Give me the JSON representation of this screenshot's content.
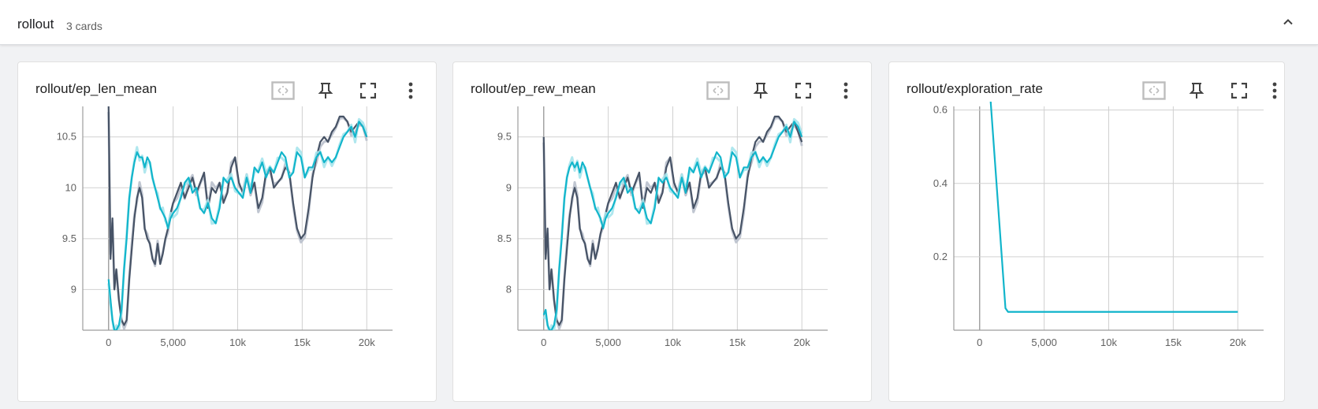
{
  "group": {
    "title": "rollout",
    "count_label": "3 cards"
  },
  "colors": {
    "run_a": "#475366",
    "run_a_raw": "#b9c0cc",
    "run_b": "#12b5cb",
    "run_b_raw": "#a6e4ec",
    "grid": "#d0d0d0",
    "axis": "#9e9e9e"
  },
  "icons": [
    "chevron-up-icon",
    "fit-domain-icon",
    "pin-icon",
    "fullscreen-icon",
    "more-vert-icon"
  ],
  "chart_data": [
    {
      "type": "line",
      "title": "rollout/ep_len_mean",
      "xlim": [
        -2000,
        22000
      ],
      "ylim": [
        8.6,
        10.8
      ],
      "x_ticks": [
        0,
        5000,
        10000,
        15000,
        20000
      ],
      "x_tick_labels": [
        "0",
        "5,000",
        "10k",
        "15k",
        "20k"
      ],
      "y_ticks": [
        9,
        9.5,
        10,
        10.5
      ],
      "y_tick_labels": [
        "9",
        "9.5",
        "10",
        "10.5"
      ],
      "grid": true,
      "series": [
        {
          "color_key": "run_a",
          "x": [
            0,
            150,
            300,
            450,
            600,
            800,
            1000,
            1200,
            1400,
            1600,
            1800,
            2000,
            2200,
            2400,
            2600,
            2800,
            3000,
            3200,
            3400,
            3600,
            3800,
            4000,
            4200,
            4400,
            4600,
            4800,
            5000,
            5300,
            5600,
            5900,
            6200,
            6500,
            6800,
            7100,
            7400,
            7700,
            8000,
            8300,
            8600,
            8900,
            9200,
            9500,
            9800,
            10100,
            10400,
            10700,
            11000,
            11300,
            11600,
            11900,
            12200,
            12500,
            12800,
            13100,
            13400,
            13700,
            14000,
            14300,
            14600,
            14900,
            15200,
            15500,
            15800,
            16100,
            16400,
            16700,
            17000,
            17300,
            17600,
            17900,
            18200,
            18500,
            18800,
            19100,
            19400,
            19700,
            20000
          ],
          "y": [
            10.8,
            9.3,
            9.7,
            9.0,
            9.2,
            8.9,
            8.7,
            8.65,
            8.7,
            9.1,
            9.4,
            9.7,
            9.9,
            10.0,
            9.9,
            9.6,
            9.5,
            9.45,
            9.3,
            9.25,
            9.45,
            9.25,
            9.35,
            9.5,
            9.6,
            9.75,
            9.85,
            9.95,
            10.05,
            9.9,
            10.0,
            10.1,
            9.95,
            10.05,
            10.15,
            9.8,
            10.0,
            9.95,
            10.05,
            9.85,
            9.95,
            10.2,
            10.3,
            10.05,
            9.95,
            10.1,
            9.95,
            10.05,
            9.8,
            9.9,
            10.15,
            10.2,
            10.0,
            10.05,
            10.1,
            10.2,
            10.15,
            9.85,
            9.6,
            9.5,
            9.55,
            9.8,
            10.1,
            10.3,
            10.45,
            10.5,
            10.45,
            10.55,
            10.6,
            10.7,
            10.7,
            10.65,
            10.55,
            10.6,
            10.65,
            10.6,
            10.5
          ]
        },
        {
          "color_key": "run_b",
          "x": [
            0,
            150,
            300,
            450,
            600,
            800,
            1000,
            1200,
            1400,
            1600,
            1800,
            2000,
            2200,
            2400,
            2600,
            2800,
            3000,
            3200,
            3400,
            3600,
            3800,
            4000,
            4200,
            4400,
            4600,
            4800,
            5000,
            5300,
            5600,
            5900,
            6200,
            6500,
            6800,
            7100,
            7400,
            7700,
            8000,
            8300,
            8600,
            8900,
            9200,
            9500,
            9800,
            10100,
            10400,
            10700,
            11000,
            11300,
            11600,
            11900,
            12200,
            12500,
            12800,
            13100,
            13400,
            13700,
            14000,
            14300,
            14600,
            14900,
            15200,
            15500,
            15800,
            16100,
            16400,
            16700,
            17000,
            17300,
            17600,
            17900,
            18200,
            18500,
            18800,
            19100,
            19400,
            19700,
            20000
          ],
          "y": [
            9.1,
            8.9,
            8.7,
            8.6,
            8.6,
            8.65,
            8.8,
            9.2,
            9.5,
            9.9,
            10.1,
            10.25,
            10.35,
            10.3,
            10.3,
            10.2,
            10.3,
            10.25,
            10.1,
            10.0,
            9.9,
            9.8,
            9.75,
            9.7,
            9.6,
            9.7,
            9.75,
            9.8,
            9.9,
            10.05,
            10.1,
            9.95,
            10.0,
            9.8,
            9.75,
            9.85,
            9.7,
            9.65,
            9.8,
            10.1,
            10.05,
            10.1,
            10.0,
            9.95,
            9.9,
            10.1,
            9.95,
            10.2,
            10.15,
            10.25,
            10.1,
            10.2,
            10.15,
            10.25,
            10.35,
            10.3,
            10.1,
            10.15,
            10.35,
            10.3,
            10.1,
            10.2,
            10.2,
            10.3,
            10.35,
            10.25,
            10.3,
            10.25,
            10.3,
            10.4,
            10.5,
            10.55,
            10.6,
            10.5,
            10.65,
            10.6,
            10.5
          ]
        }
      ]
    },
    {
      "type": "line",
      "title": "rollout/ep_rew_mean",
      "xlim": [
        -2000,
        22000
      ],
      "ylim": [
        7.6,
        9.8
      ],
      "x_ticks": [
        0,
        5000,
        10000,
        15000,
        20000
      ],
      "x_tick_labels": [
        "0",
        "5,000",
        "10k",
        "15k",
        "20k"
      ],
      "y_ticks": [
        8,
        8.5,
        9,
        9.5
      ],
      "y_tick_labels": [
        "8",
        "8.5",
        "9",
        "9.5"
      ],
      "grid": true,
      "series": [
        {
          "color_key": "run_a",
          "x": [
            0,
            150,
            300,
            450,
            600,
            800,
            1000,
            1200,
            1400,
            1600,
            1800,
            2000,
            2200,
            2400,
            2600,
            2800,
            3000,
            3200,
            3400,
            3600,
            3800,
            4000,
            4200,
            4400,
            4600,
            4800,
            5000,
            5300,
            5600,
            5900,
            6200,
            6500,
            6800,
            7100,
            7400,
            7700,
            8000,
            8300,
            8600,
            8900,
            9200,
            9500,
            9800,
            10100,
            10400,
            10700,
            11000,
            11300,
            11600,
            11900,
            12200,
            12500,
            12800,
            13100,
            13400,
            13700,
            14000,
            14300,
            14600,
            14900,
            15200,
            15500,
            15800,
            16100,
            16400,
            16700,
            17000,
            17300,
            17600,
            17900,
            18200,
            18500,
            18800,
            19100,
            19400,
            19700,
            20000
          ],
          "y": [
            9.5,
            8.3,
            8.6,
            8.0,
            8.2,
            7.9,
            7.7,
            7.65,
            7.7,
            8.1,
            8.4,
            8.7,
            8.9,
            9.0,
            8.9,
            8.6,
            8.5,
            8.45,
            8.3,
            8.25,
            8.45,
            8.3,
            8.4,
            8.55,
            8.65,
            8.75,
            8.85,
            8.95,
            9.05,
            8.9,
            9.0,
            9.1,
            8.95,
            9.05,
            9.15,
            8.8,
            9.0,
            8.95,
            9.05,
            8.85,
            8.95,
            9.2,
            9.3,
            9.05,
            8.95,
            9.1,
            8.95,
            9.05,
            8.8,
            8.9,
            9.15,
            9.2,
            9.0,
            9.05,
            9.1,
            9.2,
            9.15,
            8.85,
            8.6,
            8.5,
            8.55,
            8.8,
            9.1,
            9.3,
            9.45,
            9.5,
            9.45,
            9.55,
            9.6,
            9.7,
            9.7,
            9.65,
            9.55,
            9.6,
            9.65,
            9.55,
            9.45
          ]
        },
        {
          "color_key": "run_b",
          "x": [
            0,
            150,
            300,
            450,
            600,
            800,
            1000,
            1200,
            1400,
            1600,
            1800,
            2000,
            2200,
            2400,
            2600,
            2800,
            3000,
            3200,
            3400,
            3600,
            3800,
            4000,
            4200,
            4400,
            4600,
            4800,
            5000,
            5300,
            5600,
            5900,
            6200,
            6500,
            6800,
            7100,
            7400,
            7700,
            8000,
            8300,
            8600,
            8900,
            9200,
            9500,
            9800,
            10100,
            10400,
            10700,
            11000,
            11300,
            11600,
            11900,
            12200,
            12500,
            12800,
            13100,
            13400,
            13700,
            14000,
            14300,
            14600,
            14900,
            15200,
            15500,
            15800,
            16100,
            16400,
            16700,
            17000,
            17300,
            17600,
            17900,
            18200,
            18500,
            18800,
            19100,
            19400,
            19700,
            20000
          ],
          "y": [
            7.75,
            7.8,
            7.65,
            7.6,
            7.6,
            7.65,
            7.8,
            8.2,
            8.5,
            8.9,
            9.1,
            9.2,
            9.25,
            9.2,
            9.25,
            9.15,
            9.25,
            9.2,
            9.1,
            9.0,
            8.9,
            8.8,
            8.75,
            8.7,
            8.6,
            8.7,
            8.75,
            8.8,
            8.9,
            9.05,
            9.1,
            8.95,
            9.0,
            8.8,
            8.75,
            8.85,
            8.7,
            8.65,
            8.8,
            9.1,
            9.05,
            9.1,
            9.0,
            8.95,
            8.9,
            9.1,
            8.95,
            9.2,
            9.15,
            9.25,
            9.1,
            9.2,
            9.15,
            9.25,
            9.35,
            9.3,
            9.1,
            9.15,
            9.35,
            9.3,
            9.1,
            9.2,
            9.2,
            9.3,
            9.35,
            9.25,
            9.3,
            9.25,
            9.3,
            9.4,
            9.5,
            9.55,
            9.6,
            9.5,
            9.65,
            9.6,
            9.5
          ]
        }
      ]
    },
    {
      "type": "line",
      "title": "rollout/exploration_rate",
      "xlim": [
        -2000,
        22000
      ],
      "ylim": [
        0,
        0.61
      ],
      "x_ticks": [
        0,
        5000,
        10000,
        15000,
        20000
      ],
      "x_tick_labels": [
        "0",
        "5,000",
        "10k",
        "15k",
        "20k"
      ],
      "y_ticks": [
        0.2,
        0.4,
        0.6
      ],
      "y_tick_labels": [
        "0.2",
        "0.4",
        "0.6"
      ],
      "grid": true,
      "series": [
        {
          "color_key": "run_b",
          "x": [
            800,
            2000,
            2200,
            20000
          ],
          "y": [
            0.65,
            0.06,
            0.05,
            0.05
          ]
        }
      ]
    }
  ]
}
